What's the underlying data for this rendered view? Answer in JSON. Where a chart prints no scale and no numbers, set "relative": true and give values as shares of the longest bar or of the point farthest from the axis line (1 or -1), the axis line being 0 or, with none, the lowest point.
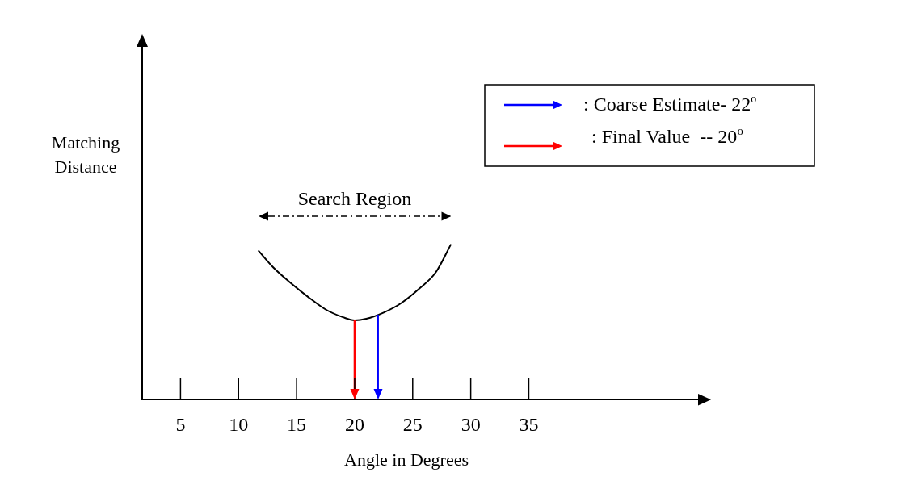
{
  "chart_data": {
    "type": "line",
    "relative": true,
    "xlabel": "Angle in Degrees",
    "ylabel": "Matching Distance",
    "x": [
      11.7,
      13,
      14.5,
      16,
      17.5,
      19,
      20,
      21,
      22.5,
      24,
      25.5,
      27,
      28.3
    ],
    "series": [
      {
        "color": "#000000",
        "values": [
          0.96,
          0.85,
          0.75,
          0.66,
          0.58,
          0.53,
          0.51,
          0.52,
          0.56,
          0.62,
          0.71,
          0.82,
          1
        ]
      }
    ],
    "xlim": [
      1.7,
      50
    ],
    "xticks": [
      5,
      10,
      15,
      20,
      25,
      30,
      35
    ],
    "grid": false,
    "marker": "none",
    "line_style": "solid",
    "legend": "top right",
    "ref_lines": [
      {
        "axis": "x",
        "value": 22,
        "label": ": Coarse Estimate- 22$^{o}$",
        "color": "#0000ff"
      },
      {
        "axis": "x",
        "value": 20,
        "label": ": Final Value  -- 20$^{o}$",
        "color": "#ff0000"
      }
    ],
    "annotations": [
      "Search Region"
    ]
  }
}
